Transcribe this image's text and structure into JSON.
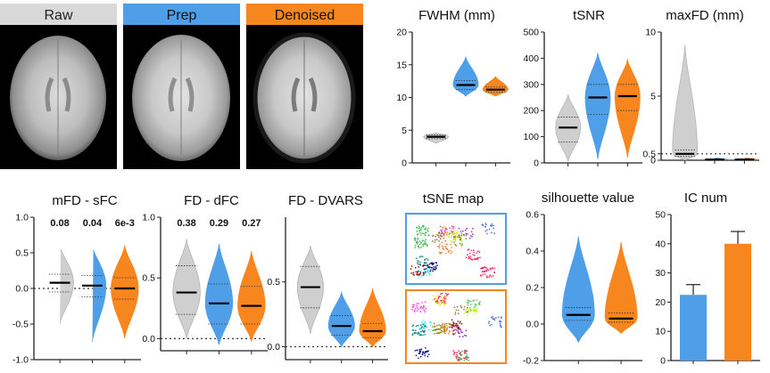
{
  "colors": {
    "raw": "#cfcfcf",
    "prep": "#4f9fe8",
    "denoised": "#f7861e",
    "raw_header": "#d9d9d9",
    "axis": "#222222",
    "text": "#111111"
  },
  "brains": {
    "labels": [
      "Raw",
      "Prep",
      "Denoised"
    ]
  },
  "tsne": {
    "title": "tSNE map"
  },
  "chart_data": [
    {
      "id": "fwhm",
      "type": "violin",
      "title": "FWHM (mm)",
      "ylim": [
        0,
        20
      ],
      "yticks": [
        0,
        5,
        10,
        15,
        20
      ],
      "ytick_labels": [
        "0",
        "5",
        "10",
        "15",
        "20"
      ],
      "groups": [
        "Raw",
        "Prep",
        "Denoised"
      ],
      "series": [
        {
          "name": "Raw",
          "median": 4.0,
          "q1": 3.7,
          "q3": 4.3,
          "min": 3.0,
          "max": 4.6
        },
        {
          "name": "Prep",
          "median": 11.9,
          "q1": 11.2,
          "q3": 12.6,
          "min": 10.2,
          "max": 16.2
        },
        {
          "name": "Denoised",
          "median": 11.2,
          "q1": 10.8,
          "q3": 11.6,
          "min": 10.2,
          "max": 13.2
        }
      ],
      "labels": [
        "",
        "",
        ""
      ]
    },
    {
      "id": "tsnr",
      "type": "violin",
      "title": "tSNR",
      "ylim": [
        0,
        500
      ],
      "yticks": [
        0,
        100,
        200,
        300,
        400,
        500
      ],
      "ytick_labels": [
        "0",
        "100",
        "200",
        "300",
        "400",
        "500"
      ],
      "groups": [
        "Raw",
        "Prep",
        "Denoised"
      ],
      "series": [
        {
          "name": "Raw",
          "median": 135,
          "q1": 80,
          "q3": 175,
          "min": 5,
          "max": 260
        },
        {
          "name": "Prep",
          "median": 250,
          "q1": 185,
          "q3": 300,
          "min": 15,
          "max": 420
        },
        {
          "name": "Denoised",
          "median": 255,
          "q1": 200,
          "q3": 300,
          "min": 20,
          "max": 395
        }
      ],
      "labels": [
        "",
        "",
        ""
      ]
    },
    {
      "id": "maxfd",
      "type": "violin",
      "title": "maxFD (mm)",
      "ylim": [
        0,
        10
      ],
      "yticks": [
        0,
        0.5,
        5,
        10
      ],
      "ytick_labels": [
        "0",
        "0.5",
        "5",
        "10"
      ],
      "reference_line": 0.5,
      "groups": [
        "Raw",
        "Prep",
        "Denoised"
      ],
      "series": [
        {
          "name": "Raw",
          "median": 0.5,
          "q1": 0.3,
          "q3": 0.8,
          "min": 0.0,
          "max": 9.0
        },
        {
          "name": "Prep",
          "median": 0.05,
          "q1": 0.03,
          "q3": 0.08,
          "min": 0.0,
          "max": 0.2
        },
        {
          "name": "Denoised",
          "median": 0.05,
          "q1": 0.03,
          "q3": 0.08,
          "min": 0.0,
          "max": 0.2
        }
      ],
      "labels": [
        "",
        "",
        ""
      ]
    },
    {
      "id": "mfd_sfc",
      "type": "violin",
      "title": "mFD - sFC",
      "ylim": [
        -1.0,
        1.0
      ],
      "yticks": [
        -1.0,
        -0.5,
        0.0,
        0.5,
        1.0
      ],
      "ytick_labels": [
        "-1.0",
        "-0.5",
        "0.0",
        "0.5",
        "1.0"
      ],
      "reference_line": 0.0,
      "groups": [
        "Raw",
        "Prep",
        "Denoised"
      ],
      "series": [
        {
          "name": "Raw",
          "median": 0.08,
          "q1": -0.05,
          "q3": 0.2,
          "min": -0.5,
          "max": 0.6
        },
        {
          "name": "Prep",
          "median": 0.04,
          "q1": -0.12,
          "q3": 0.18,
          "min": -0.75,
          "max": 0.6
        },
        {
          "name": "Denoised",
          "median": 0.0,
          "q1": -0.15,
          "q3": 0.15,
          "min": -0.7,
          "max": 0.6
        }
      ],
      "labels": [
        "0.08",
        "0.04",
        "6e-3"
      ]
    },
    {
      "id": "fd_dfc",
      "type": "violin",
      "title": "FD - dFC",
      "ylim": [
        -0.1,
        1.0
      ],
      "yticks": [
        0.0,
        0.5,
        1.0
      ],
      "ytick_labels": [
        "0.0",
        "0.5",
        "1.0"
      ],
      "reference_line": 0.0,
      "groups": [
        "Raw",
        "Prep",
        "Denoised"
      ],
      "series": [
        {
          "name": "Raw",
          "median": 0.38,
          "q1": 0.2,
          "q3": 0.6,
          "min": 0.0,
          "max": 0.82
        },
        {
          "name": "Prep",
          "median": 0.29,
          "q1": 0.12,
          "q3": 0.45,
          "min": -0.05,
          "max": 0.78
        },
        {
          "name": "Denoised",
          "median": 0.27,
          "q1": 0.12,
          "q3": 0.43,
          "min": -0.02,
          "max": 0.72
        }
      ],
      "labels": [
        "0.38",
        "0.29",
        "0.27"
      ]
    },
    {
      "id": "fd_dvars",
      "type": "violin",
      "title": "FD - DVARS",
      "ylim": [
        -0.1,
        1.0
      ],
      "yticks": [
        0.0,
        0.5
      ],
      "ytick_labels": [
        "0.0",
        "0.5"
      ],
      "reference_line": 0.0,
      "groups": [
        "Raw",
        "Prep",
        "Denoised"
      ],
      "series": [
        {
          "name": "Raw",
          "median": 0.46,
          "q1": 0.3,
          "q3": 0.62,
          "min": 0.1,
          "max": 0.78
        },
        {
          "name": "Prep",
          "median": 0.16,
          "q1": 0.09,
          "q3": 0.24,
          "min": 0.0,
          "max": 0.42
        },
        {
          "name": "Denoised",
          "median": 0.12,
          "q1": 0.07,
          "q3": 0.18,
          "min": 0.0,
          "max": 0.45
        }
      ],
      "labels": [
        "",
        "",
        ""
      ]
    },
    {
      "id": "silhouette",
      "type": "violin",
      "title": "silhouette value",
      "ylim": [
        -0.2,
        0.6
      ],
      "yticks": [
        -0.2,
        0.0,
        0.2,
        0.4,
        0.6
      ],
      "ytick_labels": [
        "-0.2",
        "0.0",
        "0.2",
        "0.4",
        "0.6"
      ],
      "groups": [
        "Prep",
        "Denoised"
      ],
      "series": [
        {
          "name": "Prep",
          "median": 0.05,
          "q1": 0.02,
          "q3": 0.09,
          "min": -0.1,
          "max": 0.48
        },
        {
          "name": "Denoised",
          "median": 0.03,
          "q1": 0.01,
          "q3": 0.06,
          "min": -0.05,
          "max": 0.45
        }
      ],
      "labels": [
        "",
        ""
      ]
    },
    {
      "id": "ic_num",
      "type": "bar",
      "title": "IC num",
      "ylim": [
        0,
        50
      ],
      "yticks": [
        0,
        10,
        20,
        30,
        40,
        50
      ],
      "ytick_labels": [
        "0",
        "10",
        "20",
        "30",
        "40",
        "50"
      ],
      "categories": [
        "Prep",
        "Denoised"
      ],
      "values": [
        22.5,
        40
      ],
      "errors": [
        3.5,
        4.2
      ]
    }
  ]
}
